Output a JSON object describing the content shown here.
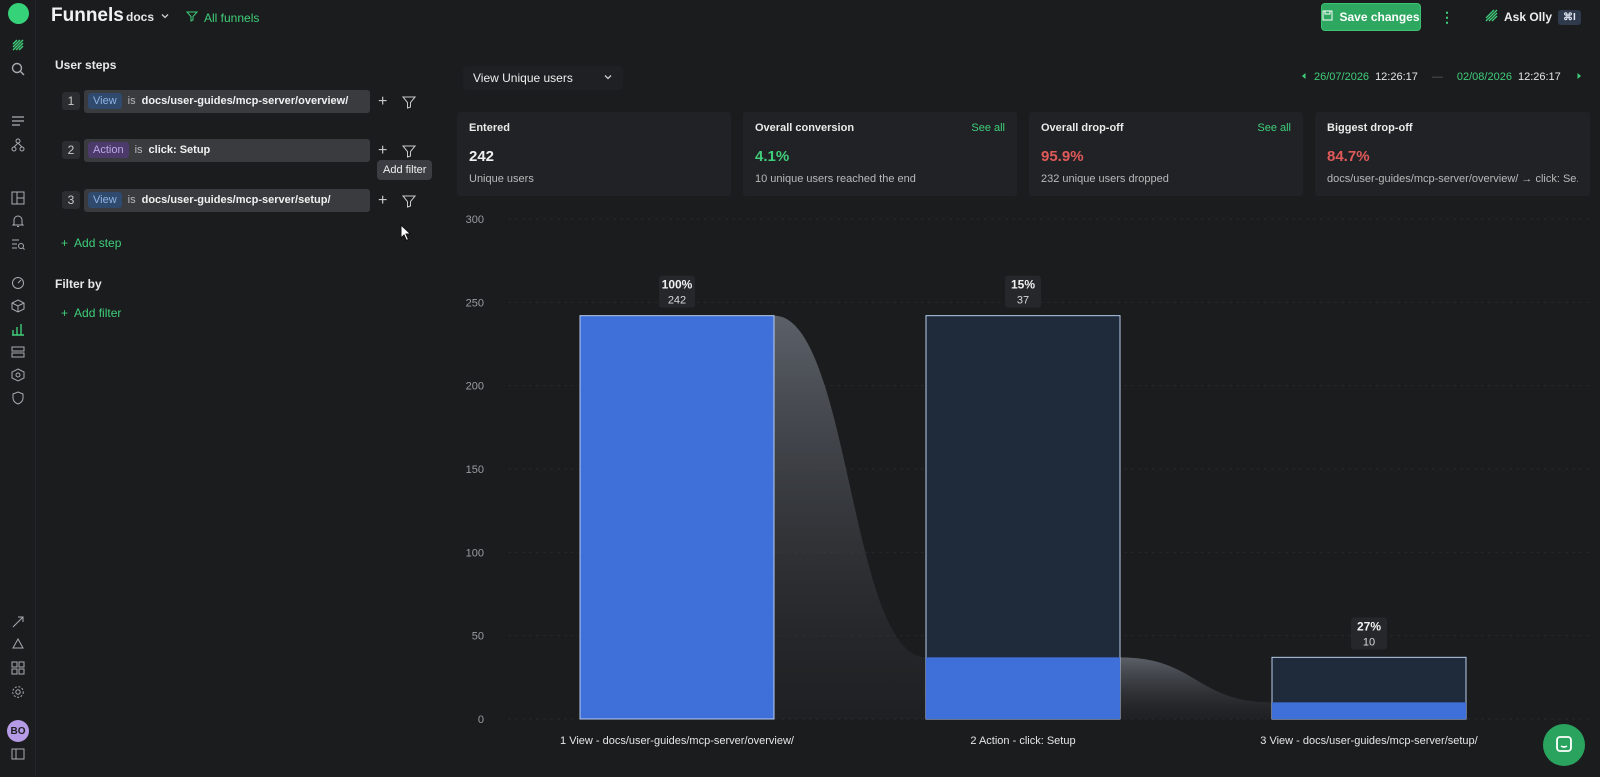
{
  "app": {
    "title": "Funnels",
    "project": "docs",
    "all_funnels": "All funnels",
    "save": "Save changes",
    "ask": "Ask Olly",
    "shortcut": "⌘I",
    "avatar": "BO"
  },
  "left": {
    "user_steps_label": "User steps",
    "steps": [
      {
        "num": "1",
        "kind": "View",
        "op": "is",
        "value": "docs/user-guides/mcp-server/overview/"
      },
      {
        "num": "2",
        "kind": "Action",
        "op": "is",
        "value": "click: Setup"
      },
      {
        "num": "3",
        "kind": "View",
        "op": "is",
        "value": "docs/user-guides/mcp-server/setup/"
      }
    ],
    "tooltip": "Add filter",
    "add_step": "Add step",
    "filter_by_label": "Filter by",
    "add_filter": "Add filter"
  },
  "toolbar": {
    "view_label": "View",
    "view_value": "Unique users",
    "date_from": "26/07/2026",
    "time_from": "12:26:17",
    "date_to": "02/08/2026",
    "time_to": "12:26:17"
  },
  "stats": [
    {
      "title": "Entered",
      "value": "242",
      "sub": "Unique users",
      "value_color": "#f0f0f0",
      "see_all": ""
    },
    {
      "title": "Overall conversion",
      "value": "4.1%",
      "sub": "10 unique users reached the end",
      "value_color": "#3fce7a",
      "see_all": "See all"
    },
    {
      "title": "Overall drop-off",
      "value": "95.9%",
      "sub": "232 unique users dropped",
      "value_color": "#e05a5a",
      "see_all": "See all"
    },
    {
      "title": "Biggest drop-off",
      "value": "84.7%",
      "sub": "docs/user-guides/mcp-server/overview/ → click: Se...",
      "value_color": "#e05a5a",
      "see_all": ""
    }
  ],
  "chart_data": {
    "type": "bar",
    "ylim": [
      0,
      300
    ],
    "yticks": [
      0,
      50,
      100,
      150,
      200,
      250,
      300
    ],
    "categories": [
      "1  View - docs/user-guides/mcp-server/overview/",
      "2  Action - click: Setup",
      "3  View - docs/user-guides/mcp-server/setup/"
    ],
    "series": [
      {
        "values": [
          242,
          37,
          10
        ]
      }
    ],
    "outline": [
      242,
      242,
      37
    ],
    "pct_labels": [
      "100%",
      "15%",
      "27%"
    ],
    "count_labels": [
      "242",
      "37",
      "10"
    ],
    "colors": {
      "bar": "#3f6fd8",
      "outline_fill": "#1f2a3a",
      "outline_stroke": "#b7cdef"
    }
  }
}
